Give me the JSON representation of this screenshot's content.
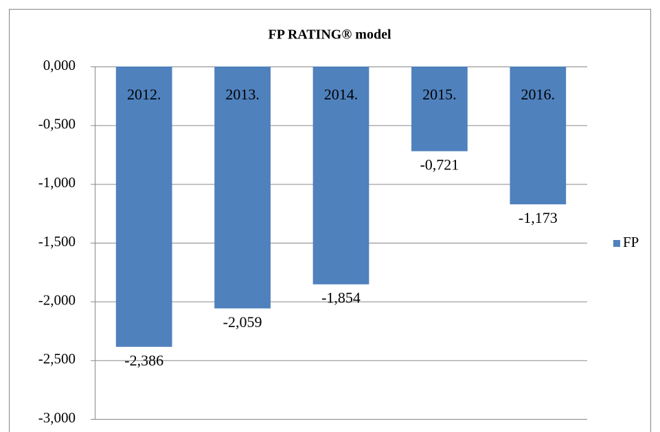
{
  "chart_data": {
    "type": "bar",
    "title": "FP RATING® model",
    "categories": [
      "2012.",
      "2013.",
      "2014.",
      "2015.",
      "2016."
    ],
    "series": [
      {
        "name": "FP",
        "color": "#4f81bd",
        "values": [
          -2.386,
          -2.059,
          -1.854,
          -0.721,
          -1.173
        ],
        "value_labels": [
          "-2,386",
          "-2,059",
          "-1,854",
          "-0,721",
          "-1,173"
        ]
      }
    ],
    "ylim": [
      -3,
      0
    ],
    "yticks": [
      {
        "value": 0,
        "label": "0,000"
      },
      {
        "value": -0.5,
        "label": "-0,500"
      },
      {
        "value": -1,
        "label": "-1,000"
      },
      {
        "value": -1.5,
        "label": "-1,500"
      },
      {
        "value": -2,
        "label": "-2,000"
      },
      {
        "value": -2.5,
        "label": "-2,500"
      },
      {
        "value": -3,
        "label": "-3,000"
      }
    ],
    "grid": true,
    "legend": "right"
  }
}
